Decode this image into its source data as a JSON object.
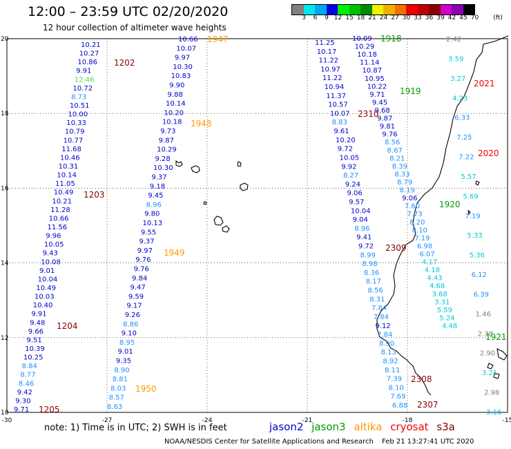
{
  "header": {
    "title": "12:00 – 23:59 UTC 02/20/2020",
    "subtitle": "12 hour collection of altimeter wave heights"
  },
  "color_scale": {
    "unit": "(ft)",
    "colors": [
      "#808080",
      "#00e8e8",
      "#00a8f0",
      "#0000e0",
      "#00f000",
      "#00c000",
      "#008800",
      "#f0f000",
      "#f0b000",
      "#f07000",
      "#f00000",
      "#c00000",
      "#900000",
      "#d000d0",
      "#8800b0",
      "#000000"
    ],
    "labels": [
      "3",
      "6",
      "9",
      "12",
      "15",
      "18",
      "21",
      "24",
      "27",
      "30",
      "33",
      "36",
      "39",
      "42",
      "45",
      "70"
    ]
  },
  "axes": {
    "x_ticks": [
      "-30",
      "-27",
      "-24",
      "-21",
      "-18",
      "-15"
    ],
    "y_ticks": [
      "20",
      "18",
      "16",
      "14",
      "12",
      "10"
    ]
  },
  "times": {
    "jason2": [
      "1202",
      "1203",
      "1204",
      "1205"
    ],
    "altika": [
      "1947",
      "1948",
      "1949",
      "1950"
    ],
    "jason3": [
      "1918",
      "1919",
      "1920",
      "1921"
    ],
    "cryosat": [
      "2310",
      "2309",
      "2308",
      "2307"
    ],
    "s3a": [
      "2021",
      "2020"
    ]
  },
  "tracks": {
    "t1": [
      "10.21",
      "10.27",
      "10.86",
      "9.91",
      "12.46",
      "10.72",
      "8.73",
      "10.51",
      "10.00",
      "10.33",
      "10.79",
      "10.77",
      "11.68",
      "10.46",
      "10.31",
      "10.14",
      "11.05",
      "10.49",
      "10.21",
      "11.28",
      "10.66",
      "11.56",
      "9.96",
      "10.05",
      "9.43",
      "10.08",
      "9.01",
      "10.04",
      "10.49",
      "10.03",
      "10.40",
      "9.91",
      "9.48",
      "9.66",
      "9.51",
      "10.39",
      "10.25",
      "8.84",
      "8.77",
      "8.46",
      "9.42",
      "9.30",
      "9.71"
    ],
    "t2": [
      "10.66",
      "10.07",
      "9.97",
      "10.30",
      "10.83",
      "9.90",
      "9.88",
      "10.14",
      "10.20",
      "10.18",
      "9.73",
      "9.87",
      "10.29",
      "9.28",
      "10.30",
      "9.37",
      "9.18",
      "9.45",
      "8.96",
      "9.80",
      "10.13",
      "9.55",
      "9.37",
      "9.97",
      "9.76",
      "9.76",
      "9.84",
      "9.47",
      "9.59",
      "9.17",
      "9.26",
      "8.86",
      "9.10",
      "8.95",
      "9.01",
      "9.35",
      "8.90",
      "8.81",
      "8.03",
      "8.57",
      "8.63"
    ],
    "t3": [
      "11.25",
      "10.17",
      "11.22",
      "10.97",
      "11.22",
      "10.94",
      "11.37",
      "10.57",
      "10.07",
      "8.83",
      "9.61",
      "10.20",
      "9.72",
      "10.05",
      "9.92",
      "8.27",
      "9.24",
      "9.06",
      "9.57",
      "10.04",
      "9.04",
      "8.96",
      "9.41",
      "9.72",
      "8.99",
      "8.98",
      "8.36",
      "8.17",
      "8.56",
      "8.31",
      "7.84",
      "7.84",
      "9.12",
      "7.84",
      "8.90",
      "8.13",
      "8.92",
      "8.11",
      "7.39",
      "8.10",
      "7.69",
      "6.88"
    ],
    "t4": [
      "10.09",
      "10.29",
      "10.18",
      "11.14",
      "10.87",
      "10.95",
      "10.22",
      "9.71",
      "9.45",
      "9.68",
      "9.87",
      "9.81",
      "9.76",
      "8.56",
      "8.67",
      "8.21",
      "8.39",
      "8.33",
      "8.79",
      "8.19",
      "9.06",
      "7.60",
      "7.73",
      "8.20",
      "8.10",
      "7.19",
      "6.98",
      "6.07",
      "4.17",
      "4.18",
      "4.43",
      "4.68",
      "3.68",
      "3.31",
      "5.59",
      "5.24",
      "4.48"
    ],
    "t5": [
      "2.42",
      "3.59",
      "3.27",
      "4.23",
      "6.33",
      "7.25",
      "7.22",
      "5.57",
      "5.69",
      "7.19",
      "5.33",
      "5.36",
      "6.12",
      "6.39",
      "1.46",
      "2.38",
      "2.90",
      "3.21",
      "2.98",
      "3.16"
    ]
  },
  "footer": {
    "note": "note: 1) Time is in UTC; 2) SWH is in feet",
    "sat_names": [
      {
        "name": "jason2",
        "color": "#0000cc"
      },
      {
        "name": "jason3",
        "color": "#009900"
      },
      {
        "name": "altika",
        "color": "#ff9900"
      },
      {
        "name": "cryosat",
        "color": "#ee0000"
      },
      {
        "name": "s3a",
        "color": "#880000"
      }
    ],
    "credit": "NOAA/NESDIS Center for Satellite Applications and Research",
    "timestamp": "Feb 21 13:27:41 UTC 2020"
  }
}
